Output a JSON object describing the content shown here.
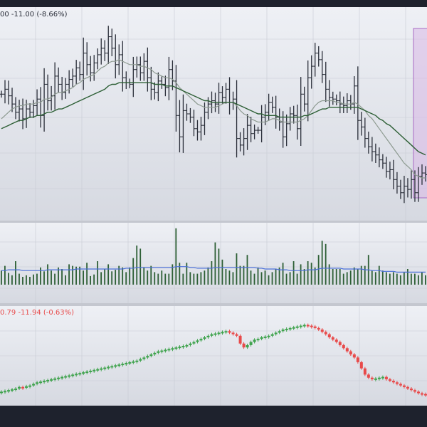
{
  "colors": {
    "background": "#1e222d",
    "pane_bg_top": "#eef0f5",
    "pane_bg_bottom": "#d6d9e1",
    "separator": "#c4c7cf",
    "grid": "#c7cad3",
    "ohlc_bar": "#2a2e39",
    "ma_fast": "#8d9a90",
    "ma_slow": "#2d5f35",
    "volume_bar": "#2d5f35",
    "volume_ma": "#4a6fd8",
    "candle_up": "#3fa34d",
    "candle_down": "#e84a4a",
    "highlight_fill": "#d8b8e6",
    "highlight_border": "#a86ac4",
    "header_text": "#2a2e39",
    "header_down_text": "#e84a4a"
  },
  "header": {
    "top_pane_values": "00  -11.00 (-8.66%)",
    "bottom_pane_values": "0.79  -11.94 (-0.63%)"
  },
  "chart_data": [
    {
      "type": "line",
      "title": "",
      "description_series": [
        "ohlc",
        "ma_fast",
        "ma_slow"
      ],
      "ohlc_close": [
        197,
        200,
        196,
        191,
        186,
        188,
        182,
        188,
        186,
        190,
        194,
        184,
        203,
        193,
        196,
        208,
        203,
        198,
        203,
        206,
        208,
        213,
        209,
        222,
        215,
        210,
        216,
        221,
        225,
        222,
        232,
        225,
        215,
        221,
        207,
        204,
        203,
        212,
        215,
        210,
        217,
        207,
        200,
        198,
        205,
        203,
        201,
        212,
        205,
        184,
        171,
        187,
        185,
        183,
        176,
        174,
        178,
        186,
        191,
        193,
        191,
        198,
        195,
        200,
        192,
        194,
        170,
        166,
        170,
        178,
        173,
        175,
        175,
        183,
        186,
        192,
        189,
        183,
        180,
        171,
        179,
        185,
        184,
        176,
        197,
        191,
        207,
        214,
        222,
        218,
        209,
        200,
        195,
        194,
        193,
        191,
        190,
        193,
        191,
        202,
        181,
        177,
        170,
        165,
        162,
        160,
        157,
        155,
        150,
        151,
        145,
        141,
        137,
        141,
        139,
        145,
        137,
        147,
        149,
        148
      ],
      "ma_fast": [
        182,
        184,
        186,
        188,
        189,
        190,
        190,
        191,
        191,
        191,
        192,
        192,
        194,
        194,
        195,
        197,
        198,
        198,
        199,
        200,
        201,
        203,
        204,
        206,
        207,
        208,
        209,
        211,
        213,
        214,
        216,
        217,
        217,
        218,
        217,
        216,
        215,
        215,
        215,
        214,
        214,
        213,
        212,
        210,
        209,
        208,
        207,
        207,
        206,
        204,
        201,
        199,
        197,
        195,
        193,
        191,
        190,
        189,
        189,
        189,
        189,
        190,
        191,
        192,
        192,
        192,
        190,
        187,
        185,
        184,
        182,
        181,
        180,
        180,
        180,
        181,
        182,
        182,
        181,
        180,
        180,
        180,
        180,
        180,
        181,
        182,
        184,
        187,
        190,
        192,
        193,
        193,
        193,
        193,
        192,
        192,
        191,
        191,
        191,
        192,
        191,
        189,
        187,
        184,
        182,
        179,
        176,
        173,
        170,
        167,
        164,
        161,
        158,
        155,
        153,
        151,
        148,
        147,
        146,
        146
      ],
      "ma_slow": [
        176,
        177,
        178,
        179,
        180,
        181,
        181,
        182,
        183,
        183,
        184,
        184,
        185,
        186,
        186,
        187,
        188,
        188,
        189,
        190,
        191,
        192,
        193,
        194,
        195,
        196,
        197,
        198,
        199,
        200,
        202,
        203,
        203,
        204,
        204,
        204,
        204,
        204,
        204,
        204,
        204,
        204,
        204,
        203,
        203,
        203,
        202,
        202,
        202,
        201,
        200,
        199,
        198,
        197,
        196,
        195,
        194,
        193,
        193,
        192,
        192,
        192,
        192,
        192,
        192,
        192,
        191,
        190,
        189,
        188,
        187,
        186,
        185,
        185,
        184,
        184,
        184,
        184,
        183,
        183,
        183,
        183,
        183,
        183,
        183,
        184,
        184,
        185,
        186,
        187,
        188,
        188,
        189,
        189,
        189,
        189,
        189,
        189,
        189,
        189,
        189,
        188,
        187,
        186,
        185,
        184,
        182,
        181,
        179,
        178,
        176,
        174,
        172,
        170,
        168,
        166,
        164,
        162,
        161,
        160
      ],
      "highlight_box": {
        "from_index": 116,
        "to_index": 119
      }
    },
    {
      "type": "bar",
      "title": "",
      "volume": [
        18,
        24,
        15,
        12,
        30,
        14,
        10,
        12,
        10,
        13,
        14,
        22,
        17,
        26,
        18,
        14,
        22,
        20,
        12,
        26,
        24,
        23,
        23,
        18,
        28,
        11,
        13,
        30,
        16,
        20,
        26,
        17,
        19,
        24,
        22,
        16,
        22,
        34,
        50,
        46,
        22,
        18,
        24,
        16,
        14,
        18,
        14,
        14,
        26,
        72,
        28,
        14,
        28,
        16,
        14,
        14,
        16,
        18,
        22,
        30,
        54,
        46,
        32,
        20,
        18,
        16,
        40,
        24,
        24,
        38,
        18,
        14,
        22,
        16,
        18,
        12,
        16,
        20,
        22,
        28,
        14,
        16,
        30,
        14,
        26,
        20,
        30,
        28,
        22,
        38,
        56,
        52,
        26,
        20,
        20,
        20,
        14,
        16,
        18,
        22,
        20,
        24,
        24,
        38,
        18,
        16,
        24,
        18,
        16,
        14,
        16,
        14,
        12,
        16,
        20,
        14,
        14,
        12,
        16,
        12
      ],
      "volume_ma": [
        18,
        18,
        19,
        19,
        19,
        19,
        18,
        18,
        18,
        18,
        18,
        18,
        18,
        19,
        19,
        19,
        19,
        19,
        19,
        19,
        19,
        20,
        20,
        20,
        20,
        20,
        20,
        20,
        20,
        20,
        20,
        20,
        20,
        20,
        20,
        21,
        21,
        21,
        22,
        22,
        22,
        22,
        22,
        22,
        22,
        22,
        22,
        22,
        22,
        23,
        23,
        23,
        23,
        22,
        22,
        21,
        21,
        21,
        21,
        21,
        22,
        22,
        22,
        22,
        22,
        22,
        22,
        22,
        22,
        22,
        22,
        22,
        21,
        21,
        20,
        20,
        20,
        20,
        19,
        19,
        19,
        18,
        18,
        18,
        18,
        18,
        19,
        19,
        19,
        20,
        21,
        21,
        21,
        21,
        21,
        21,
        20,
        20,
        20,
        20,
        20,
        20,
        19,
        19,
        18,
        18,
        18,
        17,
        17,
        17,
        17,
        16,
        16,
        16,
        16,
        16,
        16,
        16,
        16,
        16
      ]
    },
    {
      "type": "line",
      "title": "",
      "candles_close": [
        108,
        109,
        110,
        111,
        112,
        114,
        113,
        115,
        116,
        118,
        120,
        121,
        122,
        123,
        124,
        125,
        126,
        127,
        128,
        129,
        130,
        131,
        132,
        133,
        134,
        135,
        136,
        137,
        138,
        139,
        140,
        141,
        142,
        143,
        144,
        145,
        146,
        147,
        148,
        150,
        152,
        154,
        156,
        158,
        160,
        161,
        162,
        163,
        164,
        165,
        166,
        167,
        168,
        170,
        172,
        174,
        176,
        178,
        180,
        182,
        183,
        184,
        185,
        186,
        184,
        182,
        180,
        170,
        165,
        168,
        172,
        175,
        176,
        178,
        179,
        180,
        182,
        184,
        186,
        188,
        189,
        190,
        191,
        192,
        193,
        194,
        193,
        192,
        190,
        188,
        185,
        182,
        178,
        175,
        172,
        168,
        164,
        160,
        156,
        152,
        146,
        138,
        130,
        126,
        124,
        125,
        126,
        127,
        124,
        122,
        120,
        118,
        116,
        114,
        112,
        110,
        108,
        106,
        105,
        104
      ]
    }
  ]
}
